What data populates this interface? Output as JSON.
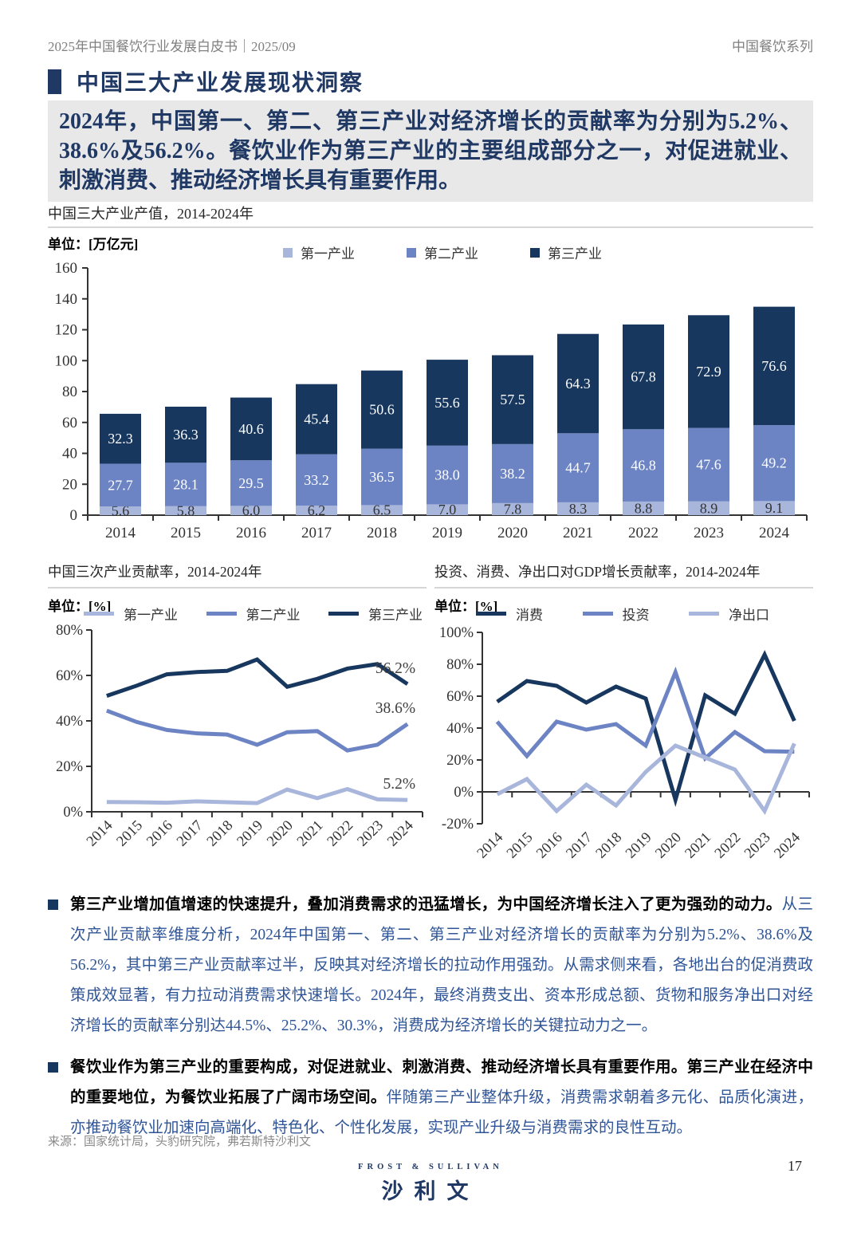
{
  "header": {
    "left": "2025年中国餐饮行业发展白皮书｜2025/09",
    "right": "中国餐饮系列"
  },
  "section": {
    "title": "中国三大产业发展现状洞察"
  },
  "highlight": {
    "text": "2024年，中国第一、第二、第三产业对经济增长的贡献率为分别为5.2%、38.6%及56.2%。餐饮业作为第三产业的主要组成部分之一，对促进就业、刺激消费、推动经济增长具有重要作用。"
  },
  "colors": {
    "navy": "#17375E",
    "medium_blue": "#6D84C4",
    "light_blue": "#A9B6DC",
    "accent_text": "#2F5597",
    "header_gray": "#808080",
    "highlight_bg": "#E8E8E8",
    "divider": "#D6D6D6"
  },
  "chart_data": [
    {
      "type": "bar",
      "title": "中国三大产业产值，2014-2024年",
      "unit_label": "单位：[万亿元]",
      "stacked": true,
      "categories": [
        "2014",
        "2015",
        "2016",
        "2017",
        "2018",
        "2019",
        "2020",
        "2021",
        "2022",
        "2023",
        "2024"
      ],
      "series": [
        {
          "name": "第一产业",
          "color": "#A9B6DC",
          "values": [
            5.6,
            5.8,
            6.0,
            6.2,
            6.5,
            7.0,
            7.8,
            8.3,
            8.8,
            8.9,
            9.1
          ]
        },
        {
          "name": "第二产业",
          "color": "#6D84C4",
          "values": [
            27.7,
            28.1,
            29.5,
            33.2,
            36.5,
            38.0,
            38.2,
            44.7,
            46.8,
            47.6,
            49.2
          ]
        },
        {
          "name": "第三产业",
          "color": "#17375E",
          "values": [
            32.3,
            36.3,
            40.6,
            45.4,
            50.6,
            55.6,
            57.5,
            64.3,
            67.8,
            72.9,
            76.6
          ]
        }
      ],
      "ylim": [
        0,
        160
      ],
      "ytick_step": 20,
      "legend_position": "top"
    },
    {
      "type": "line",
      "title": "中国三次产业贡献率，2014-2024年",
      "unit_label": "单位：[%]",
      "x": [
        "2014",
        "2015",
        "2016",
        "2017",
        "2018",
        "2019",
        "2020",
        "2021",
        "2022",
        "2023",
        "2024"
      ],
      "series": [
        {
          "name": "第一产业",
          "color": "#A9B6DC",
          "values": [
            4.3,
            4.2,
            4.0,
            4.6,
            4.2,
            3.8,
            9.8,
            6.0,
            10.0,
            5.5,
            5.2
          ],
          "end_label": "5.2%"
        },
        {
          "name": "第二产业",
          "color": "#6D84C4",
          "values": [
            44.5,
            39.5,
            36.0,
            34.5,
            34.0,
            29.5,
            35.0,
            35.5,
            27.0,
            29.5,
            38.6
          ],
          "end_label": "38.6%"
        },
        {
          "name": "第三产业",
          "color": "#17375E",
          "values": [
            51.0,
            55.5,
            60.5,
            61.5,
            62.0,
            67.0,
            55.0,
            58.5,
            63.0,
            65.0,
            56.2
          ],
          "end_label": "56.2%"
        }
      ],
      "ylim": [
        0,
        80
      ],
      "ytick_step": 20,
      "legend_position": "top"
    },
    {
      "type": "line",
      "title": "投资、消费、净出口对GDP增长贡献率，2014-2024年",
      "unit_label": "单位：[%]",
      "x": [
        "2014",
        "2015",
        "2016",
        "2017",
        "2018",
        "2019",
        "2020",
        "2021",
        "2022",
        "2023",
        "2024"
      ],
      "series": [
        {
          "name": "消费",
          "color": "#17375E",
          "values": [
            56.5,
            69.5,
            66.5,
            56.0,
            66.0,
            58.5,
            -5.0,
            60.5,
            49.0,
            86.0,
            44.5
          ]
        },
        {
          "name": "投资",
          "color": "#6D84C4",
          "values": [
            44.0,
            22.5,
            44.0,
            39.0,
            42.5,
            29.0,
            75.0,
            21.0,
            37.5,
            25.5,
            25.2
          ]
        },
        {
          "name": "净出口",
          "color": "#A9B6DC",
          "values": [
            -1.5,
            8.0,
            -12.0,
            4.5,
            -8.5,
            12.5,
            29.0,
            21.5,
            14.0,
            -12.0,
            30.3
          ]
        }
      ],
      "ylim": [
        -20,
        100
      ],
      "ytick_step": 20,
      "legend_position": "top"
    }
  ],
  "bullets": [
    {
      "bold": "第三产业增加值增速的快速提升，叠加消费需求的迅猛增长，为中国经济增长注入了更为强劲的动力。",
      "rest": "从三次产业贡献率维度分析，2024年中国第一、第二、第三产业对经济增长的贡献率为分别为5.2%、38.6%及56.2%，其中第三产业贡献率过半，反映其对经济增长的拉动作用强劲。从需求侧来看，各地出台的促消费政策成效显著，有力拉动消费需求快速增长。2024年，最终消费支出、资本形成总额、货物和服务净出口对经济增长的贡献率分别达44.5%、25.2%、30.3%，消费成为经济增长的关键拉动力之一。"
    },
    {
      "bold": "餐饮业作为第三产业的重要构成，对促进就业、刺激消费、推动经济增长具有重要作用。第三产业在经济中的重要地位，为餐饮业拓展了广阔市场空间。",
      "rest": "伴随第三产业整体升级，消费需求朝着多元化、品质化演进，亦推动餐饮业加速向高端化、特色化、个性化发展，实现产业升级与消费需求的良性互动。"
    }
  ],
  "source": "来源：国家统计局，头豹研究院，弗若斯特沙利文",
  "footer": {
    "logo_top": "FROST & SULLIVAN",
    "logo_main": "沙利文",
    "page_number": "17"
  }
}
